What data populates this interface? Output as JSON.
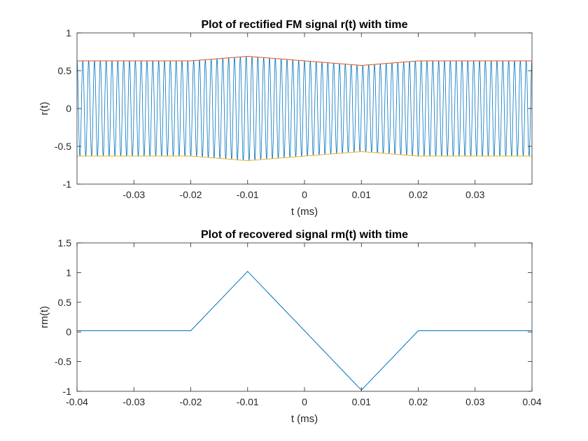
{
  "chart_data": [
    {
      "type": "line",
      "title": "Plot of rectified FM signal r(t) with time",
      "xlabel": "t (ms)",
      "ylabel": "r(t)",
      "xlim": [
        -0.04,
        0.04
      ],
      "ylim": [
        -1,
        1
      ],
      "xticks": [
        -0.03,
        -0.02,
        -0.01,
        0,
        0.01,
        0.02,
        0.03
      ],
      "xtick_labels": [
        "-0.03",
        "-0.02",
        "-0.01",
        "0",
        "0.01",
        "0.02",
        "0.03"
      ],
      "yticks": [
        -1,
        -0.5,
        0,
        0.5,
        1
      ],
      "ytick_labels": [
        "-1",
        "-0.5",
        "0",
        "0.5",
        "1"
      ],
      "grid": false,
      "series": [
        {
          "role": "signal",
          "color": "#0072BD",
          "description_of_shape": "high-frequency oscillation bounded by envelope",
          "oscillation_cycles": 78,
          "x": [
            -0.04,
            -0.02,
            -0.01,
            0.01,
            0.02,
            0.04
          ],
          "amplitude": [
            0.63,
            0.63,
            0.69,
            0.57,
            0.63,
            0.63
          ]
        },
        {
          "role": "upper-envelope",
          "color": "#D95319",
          "x": [
            -0.04,
            -0.02,
            -0.01,
            0.01,
            0.02,
            0.04
          ],
          "y": [
            0.63,
            0.63,
            0.69,
            0.57,
            0.63,
            0.63
          ]
        },
        {
          "role": "lower-envelope",
          "color": "#EDB120",
          "x": [
            -0.04,
            -0.02,
            -0.01,
            0.01,
            0.02,
            0.04
          ],
          "y": [
            -0.63,
            -0.63,
            -0.69,
            -0.57,
            -0.63,
            -0.63
          ]
        }
      ]
    },
    {
      "type": "line",
      "title": "Plot of recovered signal rm(t) with time",
      "xlabel": "t (ms)",
      "ylabel": "rm(t)",
      "xlim": [
        -0.04,
        0.04
      ],
      "ylim": [
        -1,
        1.5
      ],
      "xticks": [
        -0.04,
        -0.03,
        -0.02,
        -0.01,
        0,
        0.01,
        0.02,
        0.03,
        0.04
      ],
      "xtick_labels": [
        "-0.04",
        "-0.03",
        "-0.02",
        "-0.01",
        "0",
        "0.01",
        "0.02",
        "0.03",
        "0.04"
      ],
      "yticks": [
        -1,
        -0.5,
        0,
        0.5,
        1,
        1.5
      ],
      "ytick_labels": [
        "-1",
        "-0.5",
        "0",
        "0.5",
        "1",
        "1.5"
      ],
      "grid": false,
      "series": [
        {
          "role": "signal",
          "color": "#0072BD",
          "x": [
            -0.04,
            -0.02,
            -0.01,
            0.01,
            0.02,
            0.04
          ],
          "y": [
            0.02,
            0.02,
            1.02,
            -0.98,
            0.02,
            0.02
          ]
        }
      ]
    }
  ]
}
